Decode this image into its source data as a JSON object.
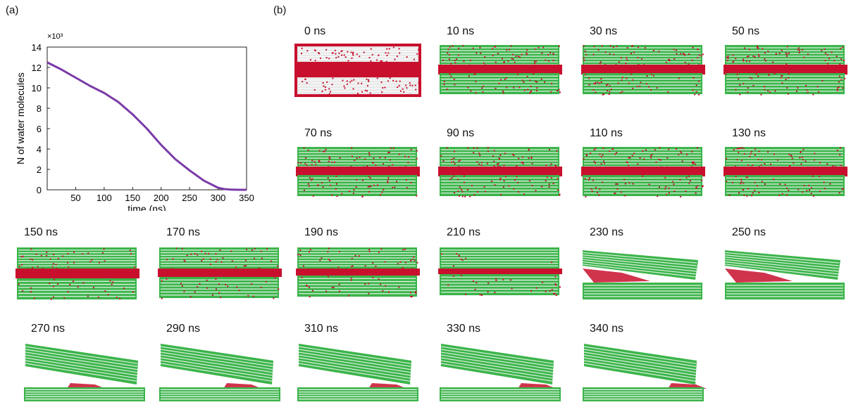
{
  "panel_a_label": "(a)",
  "panel_b_label": "(b)",
  "chart_data": {
    "type": "line",
    "ylabel": "N of water molecules",
    "xlabel": "time (ns)",
    "y_multiplier": "×10³",
    "xlim": [
      0,
      350
    ],
    "ylim": [
      0,
      14
    ],
    "xticks": [
      50,
      100,
      150,
      200,
      250,
      300,
      350
    ],
    "yticks": [
      0,
      2,
      4,
      6,
      8,
      10,
      12,
      14
    ],
    "series": [
      {
        "color": "#7a3aa8",
        "x": [
          0,
          25,
          50,
          75,
          100,
          125,
          150,
          175,
          200,
          225,
          250,
          275,
          300,
          310,
          320,
          330,
          340,
          350
        ],
        "y": [
          12.5,
          11.8,
          11.0,
          10.2,
          9.5,
          8.6,
          7.4,
          6.0,
          4.4,
          3.0,
          1.9,
          0.9,
          0.2,
          0.08,
          0.03,
          0.01,
          0.0,
          0.0
        ]
      }
    ]
  },
  "snapshots": [
    {
      "label": "0 ns"
    },
    {
      "label": "10 ns"
    },
    {
      "label": "30 ns"
    },
    {
      "label": "50 ns"
    },
    {
      "label": "70 ns"
    },
    {
      "label": "90 ns"
    },
    {
      "label": "110 ns"
    },
    {
      "label": "130 ns"
    },
    {
      "label": "150 ns"
    },
    {
      "label": "170 ns"
    },
    {
      "label": "190 ns"
    },
    {
      "label": "210 ns"
    },
    {
      "label": "230 ns"
    },
    {
      "label": "250 ns"
    },
    {
      "label": "270 ns"
    },
    {
      "label": "290 ns"
    },
    {
      "label": "310 ns"
    },
    {
      "label": "330 ns"
    },
    {
      "label": "340 ns"
    }
  ],
  "colors": {
    "membrane": "#3cb44b",
    "water": "#c8102e"
  }
}
